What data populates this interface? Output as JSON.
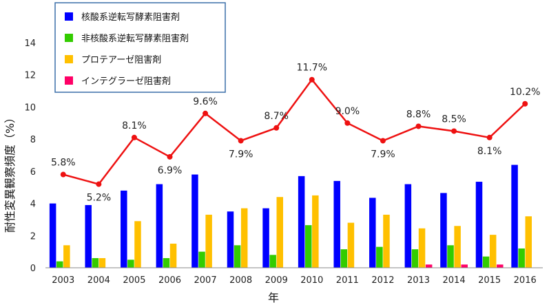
{
  "chart_data": {
    "type": "bar",
    "title": "",
    "xlabel": "年",
    "ylabel": "耐性変異観察頻度（%）",
    "ylim": [
      0,
      14
    ],
    "yticks": [
      0,
      2,
      4,
      6,
      8,
      10,
      12,
      14
    ],
    "grid": false,
    "legend_position": "top-left",
    "categories": [
      "2003",
      "2004",
      "2005",
      "2006",
      "2007",
      "2008",
      "2009",
      "2010",
      "2011",
      "2012",
      "2013",
      "2014",
      "2015",
      "2016"
    ],
    "series": [
      {
        "name": "核酸系逆転写酵素阻害剤",
        "type": "bar",
        "color": "#0000ff",
        "values": [
          4.0,
          3.9,
          4.8,
          5.2,
          5.8,
          3.5,
          3.7,
          5.7,
          5.4,
          4.35,
          5.2,
          4.65,
          5.35,
          6.4
        ]
      },
      {
        "name": "非核酸系逆転写酵素阻害剤",
        "type": "bar",
        "color": "#33cc00",
        "values": [
          0.4,
          0.6,
          0.5,
          0.6,
          1.0,
          1.4,
          0.8,
          2.65,
          1.15,
          1.3,
          1.15,
          1.4,
          0.7,
          1.2
        ]
      },
      {
        "name": "プロテアーゼ阻害剤",
        "type": "bar",
        "color": "#ffc000",
        "values": [
          1.4,
          0.6,
          2.9,
          1.5,
          3.3,
          3.7,
          4.4,
          4.5,
          2.8,
          3.3,
          2.45,
          2.6,
          2.05,
          3.2
        ]
      },
      {
        "name": "インテグラーゼ阻害剤",
        "type": "bar",
        "color": "#ff0066",
        "values": [
          0,
          0,
          0,
          0,
          0,
          0,
          0,
          0,
          0,
          0,
          0.2,
          0.2,
          0.2,
          0
        ]
      },
      {
        "name": "",
        "type": "line",
        "color": "#ee1111",
        "values": [
          5.8,
          5.2,
          8.1,
          6.9,
          9.6,
          7.9,
          8.7,
          11.7,
          9.0,
          7.9,
          8.8,
          8.5,
          8.1,
          10.2
        ],
        "labels": [
          "5.8%",
          "5.2%",
          "8.1%",
          "6.9%",
          "9.6%",
          "7.9%",
          "8.7%",
          "11.7%",
          "9.0%",
          "7.9%",
          "8.8%",
          "8.5%",
          "8.1%",
          "10.2%"
        ],
        "label_positions": [
          "above",
          "below",
          "above",
          "below",
          "above",
          "below",
          "above",
          "above",
          "above",
          "below",
          "above",
          "above",
          "below",
          "above"
        ]
      }
    ]
  }
}
